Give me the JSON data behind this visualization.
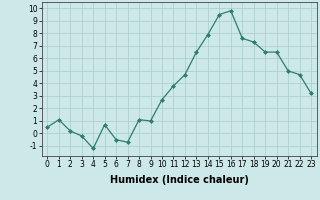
{
  "x": [
    0,
    1,
    2,
    3,
    4,
    5,
    6,
    7,
    8,
    9,
    10,
    11,
    12,
    13,
    14,
    15,
    16,
    17,
    18,
    19,
    20,
    21,
    22,
    23
  ],
  "y": [
    0.5,
    1.1,
    0.2,
    -0.2,
    -1.2,
    0.7,
    -0.5,
    -0.7,
    1.1,
    1.0,
    2.7,
    3.8,
    4.7,
    6.5,
    7.9,
    9.5,
    9.8,
    7.6,
    7.3,
    6.5,
    6.5,
    5.0,
    4.7,
    3.2
  ],
  "line_color": "#2e7d6e",
  "marker": "D",
  "marker_size": 2.0,
  "bg_color": "#cce8e8",
  "grid_color": "#aacccc",
  "xlabel": "Humidex (Indice chaleur)",
  "ylim": [
    -1.8,
    10.5
  ],
  "xlim": [
    -0.5,
    23.5
  ],
  "yticks": [
    -1,
    0,
    1,
    2,
    3,
    4,
    5,
    6,
    7,
    8,
    9,
    10
  ],
  "xticks": [
    0,
    1,
    2,
    3,
    4,
    5,
    6,
    7,
    8,
    9,
    10,
    11,
    12,
    13,
    14,
    15,
    16,
    17,
    18,
    19,
    20,
    21,
    22,
    23
  ],
  "tick_fontsize": 5.5,
  "xlabel_fontsize": 7.0,
  "linewidth": 0.9
}
